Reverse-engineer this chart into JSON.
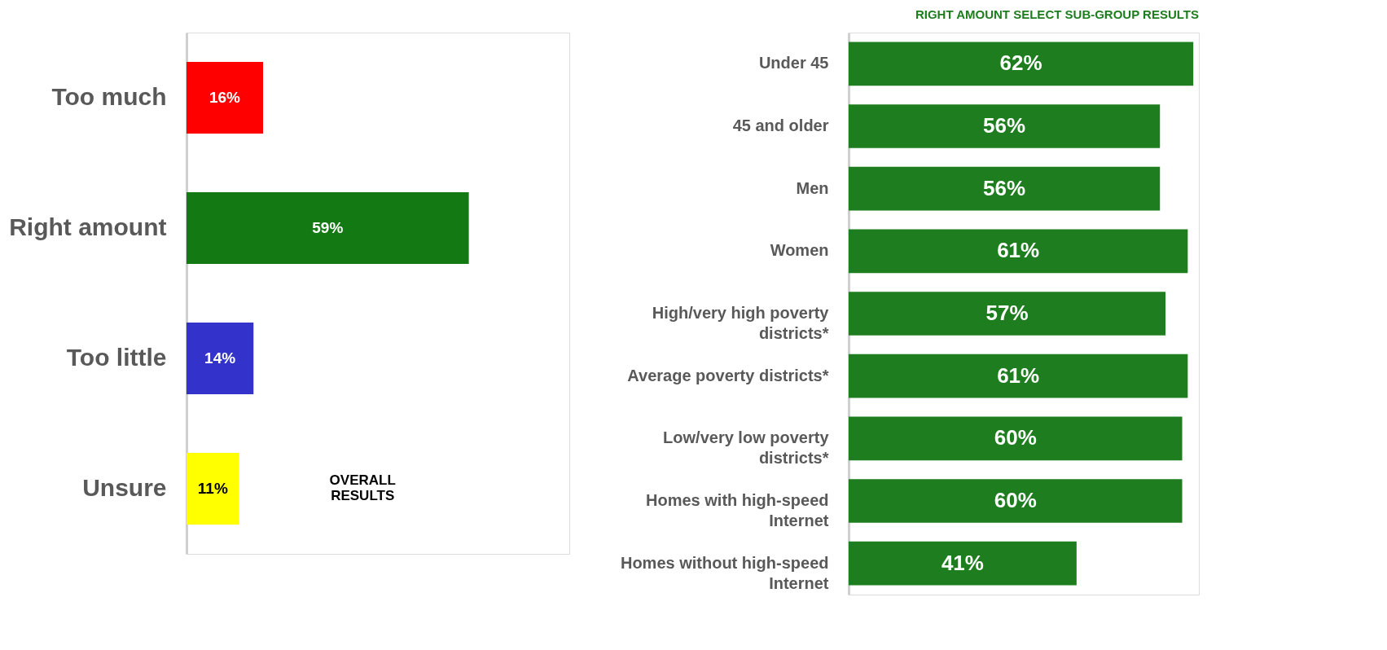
{
  "chart_data": [
    {
      "type": "bar",
      "orientation": "horizontal",
      "categories": [
        "Too much",
        "Right amount",
        "Too little",
        "Unsure"
      ],
      "values": [
        16,
        59,
        14,
        11
      ],
      "colors": [
        "#ff0000",
        "#137a13",
        "#3333cc",
        "#ffff00"
      ],
      "xlim": [
        0,
        80
      ],
      "data_labels": true,
      "value_labels": [
        "16%",
        "59%",
        "14%",
        "11%"
      ],
      "annotations": [
        "OVERALL\nRESULTS"
      ],
      "tick_labels": "y"
    },
    {
      "type": "bar",
      "orientation": "horizontal",
      "title": "RIGHT AMOUNT SELECT SUB-GROUP RESULTS",
      "categories": [
        "Under 45",
        "45 and older",
        "Men",
        "Women",
        "High/very high poverty\ndistricts*",
        "Average poverty districts*",
        "Low/very low poverty\ndistricts*",
        "Homes with high-speed\nInternet",
        "Homes without high-speed\nInternet"
      ],
      "values": [
        62,
        56,
        56,
        61,
        57,
        61,
        60,
        60,
        41
      ],
      "color": "#1e7d1e",
      "xlim": [
        0,
        63
      ],
      "data_labels": true,
      "value_labels": [
        "62%",
        "56%",
        "56%",
        "61%",
        "57%",
        "61%",
        "60%",
        "60%",
        "41%"
      ],
      "tick_labels": "y"
    }
  ]
}
